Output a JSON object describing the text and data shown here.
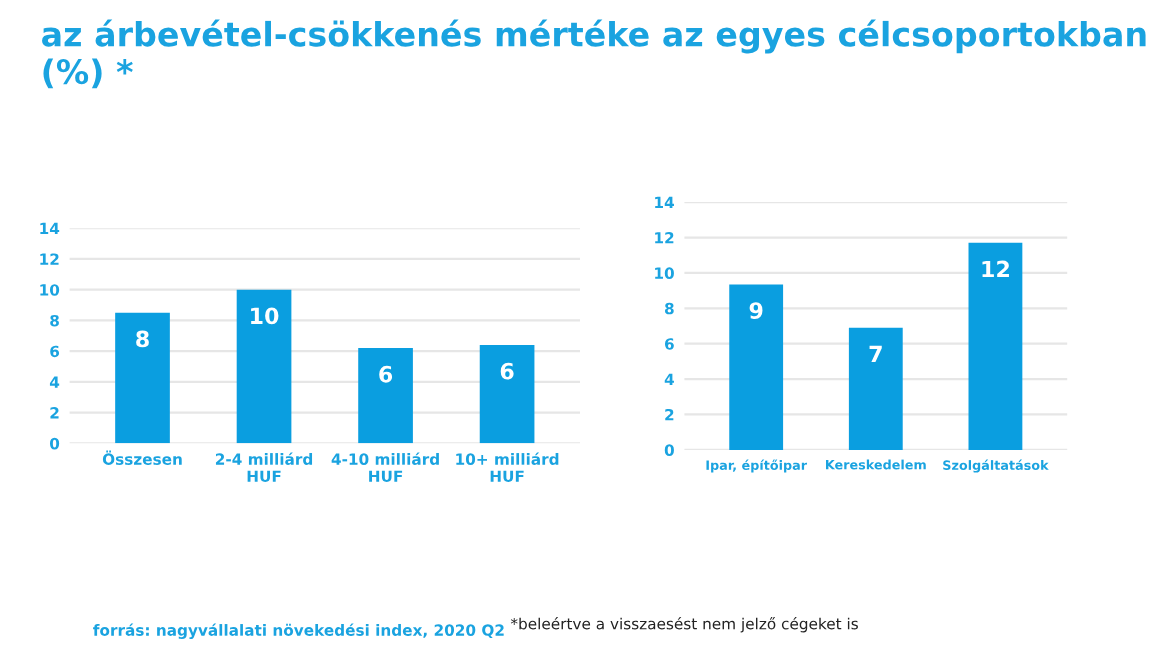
{
  "chart_data": [
    {
      "type": "bar",
      "title": "az árbevétel-csökkenés mértéke az egyes célcsoportokban (%) *",
      "categories": [
        "Összesen",
        "2-4 milliárd\nHUF",
        "4-10 milliárd\nHUF",
        "10+ milliárd\nHUF"
      ],
      "values": [
        8.5,
        10.0,
        6.2,
        6.4
      ],
      "value_labels": [
        "8",
        "10",
        "6",
        "6"
      ],
      "color": "#0a9ee0",
      "ylim": [
        0,
        14
      ],
      "yticks": [
        0,
        2,
        4,
        6,
        8,
        10,
        12,
        14
      ],
      "grid": "y",
      "legend": false,
      "annotations": [
        "forrás: nagyvállalati növekedési index, 2020 Q2",
        "*beleértve a visszaesést nem jelző cégeket is"
      ]
    },
    {
      "type": "bar",
      "categories": [
        "Ipar, építőipar",
        "Kereskedelem",
        "Szolgáltatások"
      ],
      "values": [
        9.35,
        6.9,
        11.7
      ],
      "value_labels": [
        "9",
        "7",
        "12"
      ],
      "color": "#0a9ee0",
      "ylim": [
        0,
        14
      ],
      "yticks": [
        0,
        2,
        4,
        6,
        8,
        10,
        12,
        14
      ],
      "grid": "y",
      "legend": false
    }
  ]
}
